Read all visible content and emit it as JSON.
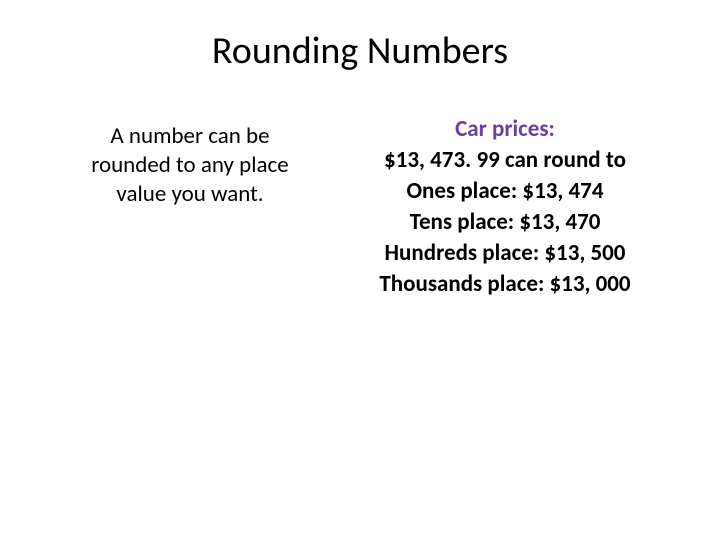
{
  "slide": {
    "title": "Rounding Numbers",
    "left_text_line1": "A number can be",
    "left_text_line2": "rounded to any place",
    "left_text_line3": "value you want.",
    "car_prices_label": "Car prices:",
    "round_intro": "$13, 473. 99 can round to",
    "ones_line": "Ones place: $13, 474",
    "tens_line": "Tens place: $13, 470",
    "hundreds_line": "Hundreds place: $13, 500",
    "thousands_line": "Thousands place: $13, 000"
  },
  "style": {
    "background_color": "#ffffff",
    "title_color": "#000000",
    "title_fontsize": 38,
    "body_fontsize": 23,
    "accent_color": "#6b3fa0",
    "text_color": "#000000",
    "font_family": "Calibri"
  }
}
